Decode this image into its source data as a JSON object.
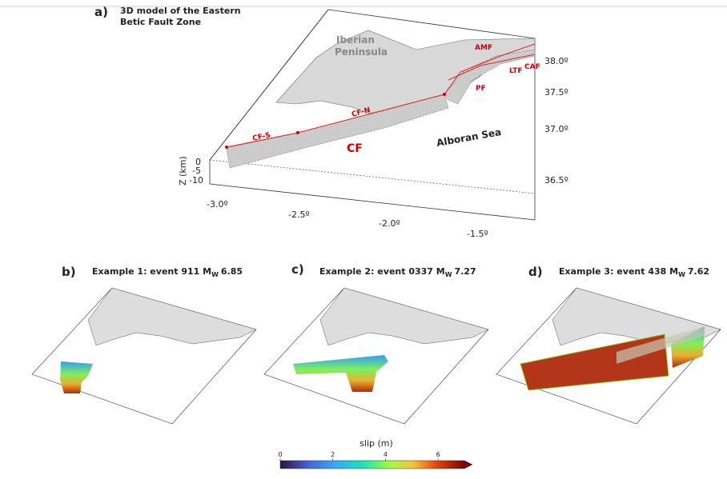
{
  "panel_a": {
    "label": "a)",
    "title": [
      "3D model of the Eastern",
      "Betic Fault Zone"
    ],
    "labels": {
      "iberian": [
        "Iberian",
        "Peninsula"
      ],
      "amf": "AMF",
      "caf": "CAF",
      "ltf": "LTF",
      "pf": "PF",
      "cfn": "CF-N",
      "cfs": "CF-S",
      "cf": "CF",
      "alboran": "Alboran Sea"
    },
    "lat_labels": [
      "38.0º",
      "37.5º",
      "37.0º",
      "36.5º"
    ],
    "lon_labels": [
      "-3.0º",
      "-2.5º",
      "-2.0º",
      "-1.5º"
    ],
    "z_labels": [
      "0",
      "-5",
      "-10"
    ],
    "z_title": "Z (km)"
  },
  "panels": [
    {
      "label": "b)",
      "title": "Example 1: event 911 M",
      "subscript": "W",
      "magnitude": "6.85"
    },
    {
      "label": "c)",
      "title": "Example 2: event 0337 M",
      "subscript": "W",
      "magnitude": "7.27"
    },
    {
      "label": "d)",
      "title": "Example 3: event 438 M",
      "subscript": "W",
      "magnitude": "7.62"
    }
  ],
  "colorbar": {
    "title": "slip (m)",
    "lim": [
      0,
      7
    ],
    "ticks": [
      0,
      2,
      4,
      6
    ]
  }
}
